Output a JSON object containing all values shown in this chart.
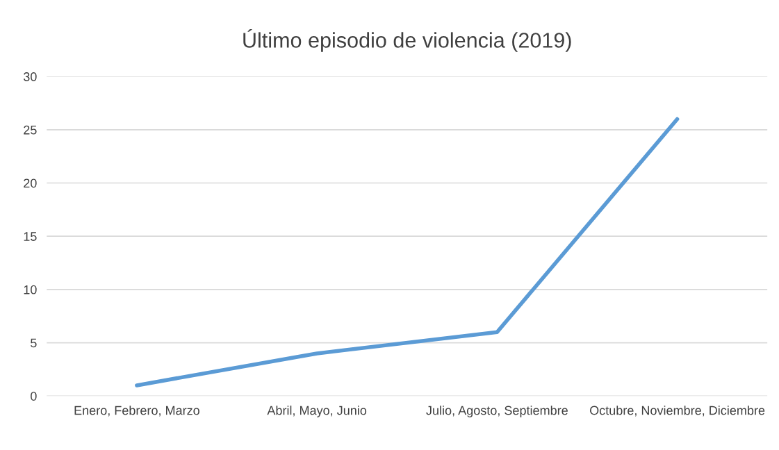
{
  "chart_data": {
    "type": "line",
    "title": "Último episodio de violencia (2019)",
    "categories": [
      "Enero, Febrero, Marzo",
      "Abril, Mayo, Junio",
      "Julio, Agosto, Septiembre",
      "Octubre, Noviembre, Diciembre"
    ],
    "series": [
      {
        "color": "#5b9bd5",
        "values": [
          1,
          4,
          6,
          26
        ]
      }
    ],
    "ylim": [
      0,
      30
    ],
    "yticks": [
      0,
      5,
      10,
      15,
      20,
      25,
      30
    ],
    "grid": "y",
    "marker": "none",
    "line_style": "solid"
  }
}
